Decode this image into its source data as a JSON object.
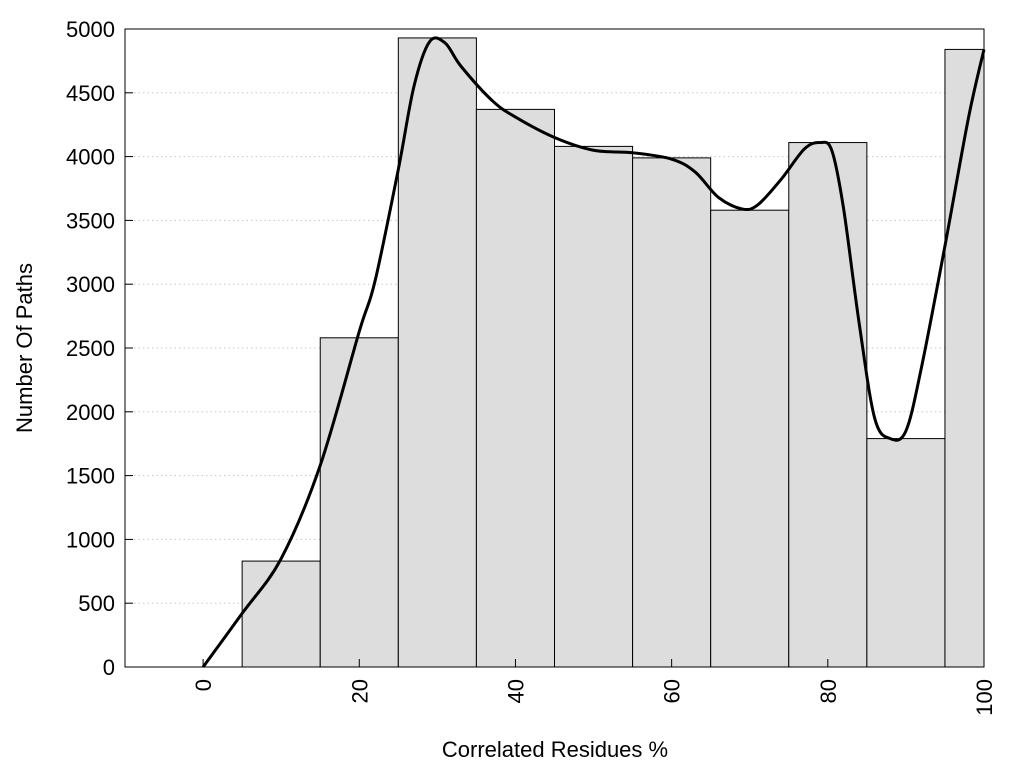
{
  "chart_data": {
    "type": "bar",
    "subtype": "histogram with smooth density curve",
    "title": "",
    "xlabel": "Correlated Residues %",
    "ylabel": "Number Of Paths",
    "xlim": [
      -10,
      100
    ],
    "ylim": [
      0,
      5000
    ],
    "xticks": [
      0,
      20,
      40,
      60,
      80,
      100
    ],
    "yticks": [
      0,
      500,
      1000,
      1500,
      2000,
      2500,
      3000,
      3500,
      4000,
      4500,
      5000
    ],
    "grid": "horizontal dotted",
    "legend": "none",
    "bar_color": "#dddddd",
    "line_color": "#000000",
    "bins": [
      {
        "x0": 0,
        "x1": 5,
        "value": 0
      },
      {
        "x0": 5,
        "x1": 15,
        "value": 830
      },
      {
        "x0": 15,
        "x1": 25,
        "value": 2580
      },
      {
        "x0": 25,
        "x1": 35,
        "value": 4930
      },
      {
        "x0": 35,
        "x1": 45,
        "value": 4370
      },
      {
        "x0": 45,
        "x1": 55,
        "value": 4080
      },
      {
        "x0": 55,
        "x1": 65,
        "value": 3990
      },
      {
        "x0": 65,
        "x1": 75,
        "value": 3580
      },
      {
        "x0": 75,
        "x1": 85,
        "value": 4110
      },
      {
        "x0": 85,
        "x1": 95,
        "value": 1790
      },
      {
        "x0": 95,
        "x1": 100,
        "value": 4840
      }
    ],
    "curve": {
      "x": [
        0,
        5,
        10,
        15,
        20,
        22,
        25,
        27,
        29,
        31,
        33,
        37,
        40,
        45,
        50,
        55,
        60,
        63,
        66,
        69,
        71,
        74,
        77,
        79,
        80.5,
        82,
        84,
        86,
        88,
        90,
        92,
        95,
        98,
        100
      ],
      "y": [
        0,
        420,
        850,
        1580,
        2630,
        3020,
        3900,
        4550,
        4900,
        4890,
        4710,
        4440,
        4310,
        4150,
        4050,
        4030,
        3980,
        3880,
        3680,
        3590,
        3620,
        3820,
        4060,
        4110,
        4050,
        3600,
        2700,
        1950,
        1790,
        1850,
        2350,
        3300,
        4300,
        4840
      ]
    }
  }
}
